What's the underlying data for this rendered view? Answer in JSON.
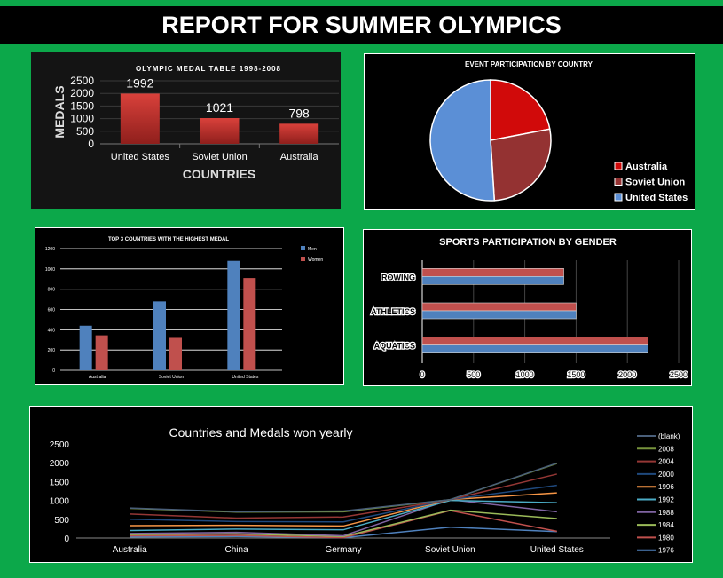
{
  "page": {
    "title": "REPORT FOR SUMMER OLYMPICS"
  },
  "chart_data": [
    {
      "id": "medal_table",
      "type": "bar",
      "title": "OLYMPIC MEDAL TABLE 1998-2008",
      "xlabel": "COUNTRIES",
      "ylabel": "MEDALS",
      "categories": [
        "United States",
        "Soviet Union",
        "Australia"
      ],
      "values": [
        1992,
        1021,
        798
      ],
      "data_labels": [
        "1992",
        "1021",
        "798"
      ],
      "ylim": [
        0,
        2500
      ],
      "yticks": [
        "0",
        "500",
        "1000",
        "1500",
        "2000",
        "2500"
      ],
      "grid": true,
      "color": "#c9302c"
    },
    {
      "id": "event_participation",
      "type": "pie",
      "title": "EVENT PARTICIPATION BY COUNTRY",
      "labels": [
        "Australia",
        "Soviet Union",
        "United States"
      ],
      "values": [
        22,
        27,
        51
      ],
      "colors": [
        "#d10a0a",
        "#943232",
        "#5b8fd6"
      ],
      "legend_position": "bottom-right"
    },
    {
      "id": "top3_gender",
      "type": "bar",
      "title": "TOP 3 COUNTRIES WITH THE HIGHEST MEDAL",
      "categories": [
        "Australia",
        "Soviet Union",
        "United States"
      ],
      "series": [
        {
          "name": "Men",
          "values": [
            440,
            680,
            1080
          ],
          "color": "#4f81bd"
        },
        {
          "name": "Women",
          "values": [
            345,
            320,
            910
          ],
          "color": "#c0504d"
        }
      ],
      "ylim": [
        0,
        1200
      ],
      "yticks": [
        "0",
        "200",
        "400",
        "600",
        "800",
        "1000",
        "1200"
      ],
      "grid": true,
      "legend_position": "top-right"
    },
    {
      "id": "sports_gender",
      "type": "bar",
      "orientation": "horizontal",
      "title": "SPORTS PARTICIPATION BY GENDER",
      "categories": [
        "AQUATICS",
        "ATHLETICS",
        "ROWING"
      ],
      "series": [
        {
          "name": "",
          "values": [
            2200,
            1500,
            1380
          ],
          "color": "#4f81bd"
        },
        {
          "name": "",
          "values": [
            2200,
            1500,
            1380
          ],
          "color": "#c0504d"
        }
      ],
      "xlim": [
        0,
        2500
      ],
      "xticks": [
        "0",
        "500",
        "1000",
        "1500",
        "2000",
        "2500"
      ],
      "grid": true
    },
    {
      "id": "yearly_medals",
      "type": "line",
      "title": "Countries and Medals won yearly",
      "categories": [
        "Australia",
        "China",
        "Germany",
        "Soviet Union",
        "United States"
      ],
      "ylim": [
        0,
        2500
      ],
      "yticks": [
        "0",
        "500",
        "1000",
        "1500",
        "2000",
        "2500"
      ],
      "legend_position": "right",
      "series": [
        {
          "name": "(blank)",
          "values": [
            798,
            700,
            720,
            1021,
            1992
          ],
          "color": "#4a5f7a"
        },
        {
          "name": "2008",
          "values": [
            790,
            690,
            700,
            1021,
            1980
          ],
          "color": "#77933c"
        },
        {
          "name": "2004",
          "values": [
            640,
            530,
            560,
            1021,
            1700
          ],
          "color": "#953735"
        },
        {
          "name": "2000",
          "values": [
            500,
            440,
            430,
            1021,
            1400
          ],
          "color": "#1f497d"
        },
        {
          "name": "1996",
          "values": [
            330,
            340,
            320,
            1021,
            1200
          ],
          "color": "#f79646"
        },
        {
          "name": "1992",
          "values": [
            200,
            240,
            220,
            1000,
            940
          ],
          "color": "#4bacc6"
        },
        {
          "name": "1988",
          "values": [
            120,
            150,
            60,
            1021,
            700
          ],
          "color": "#8064a2"
        },
        {
          "name": "1984",
          "values": [
            90,
            110,
            40,
            740,
            520
          ],
          "color": "#9bbb59"
        },
        {
          "name": "1980",
          "values": [
            60,
            70,
            10,
            730,
            180
          ],
          "color": "#c0504d"
        },
        {
          "name": "1976",
          "values": [
            30,
            40,
            10,
            290,
            170
          ],
          "color": "#4f81bd"
        }
      ]
    }
  ]
}
